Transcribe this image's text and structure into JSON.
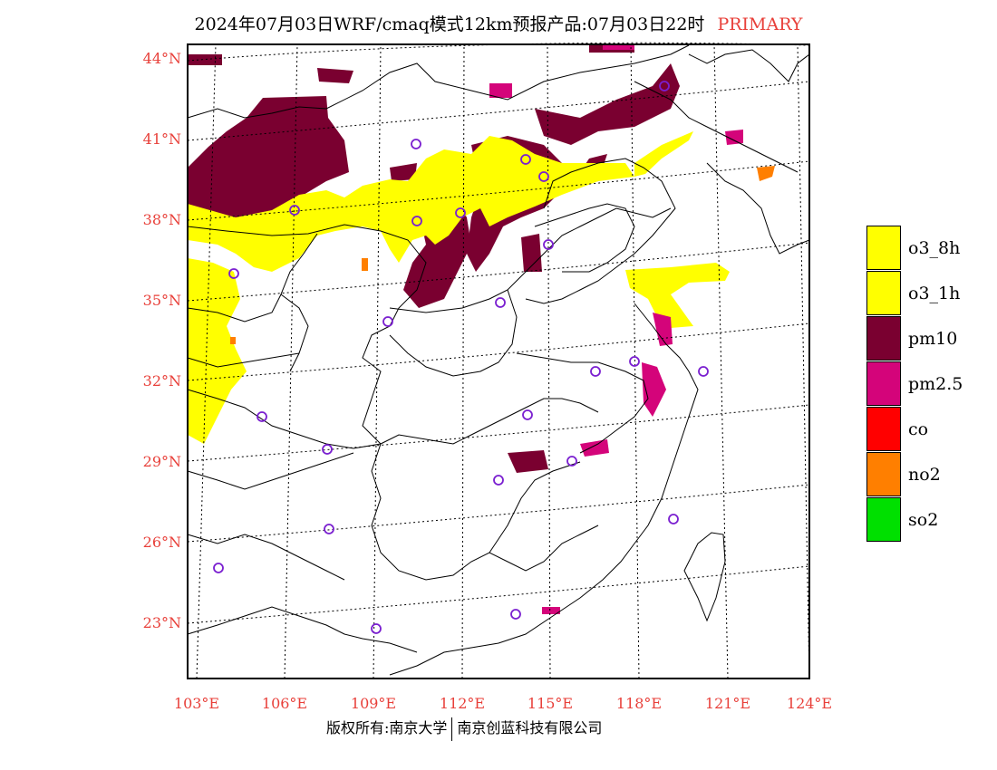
{
  "title": {
    "main": "2024年07月03日WRF/cmaq模式12km预报产品:07月03日22时",
    "tag": "PRIMARY"
  },
  "axes": {
    "lat_labels": [
      "44°N",
      "41°N",
      "38°N",
      "35°N",
      "32°N",
      "29°N",
      "26°N",
      "23°N"
    ],
    "lon_labels": [
      "103°E",
      "106°E",
      "109°E",
      "112°E",
      "115°E",
      "118°E",
      "121°E",
      "124°E"
    ]
  },
  "legend": [
    {
      "label": "o3_8h",
      "color": "#ffff00"
    },
    {
      "label": "o3_1h",
      "color": "#ffff00"
    },
    {
      "label": "pm10",
      "color": "#7a0030"
    },
    {
      "label": "pm2.5",
      "color": "#d4047a"
    },
    {
      "label": "co",
      "color": "#ff0000"
    },
    {
      "label": "no2",
      "color": "#ff7f00"
    },
    {
      "label": "so2",
      "color": "#00e000"
    }
  ],
  "footer": {
    "left": "版权所有:南京大学",
    "right": "南京创蓝科技有限公司"
  },
  "station_marker_color": "#7a1fd0"
}
